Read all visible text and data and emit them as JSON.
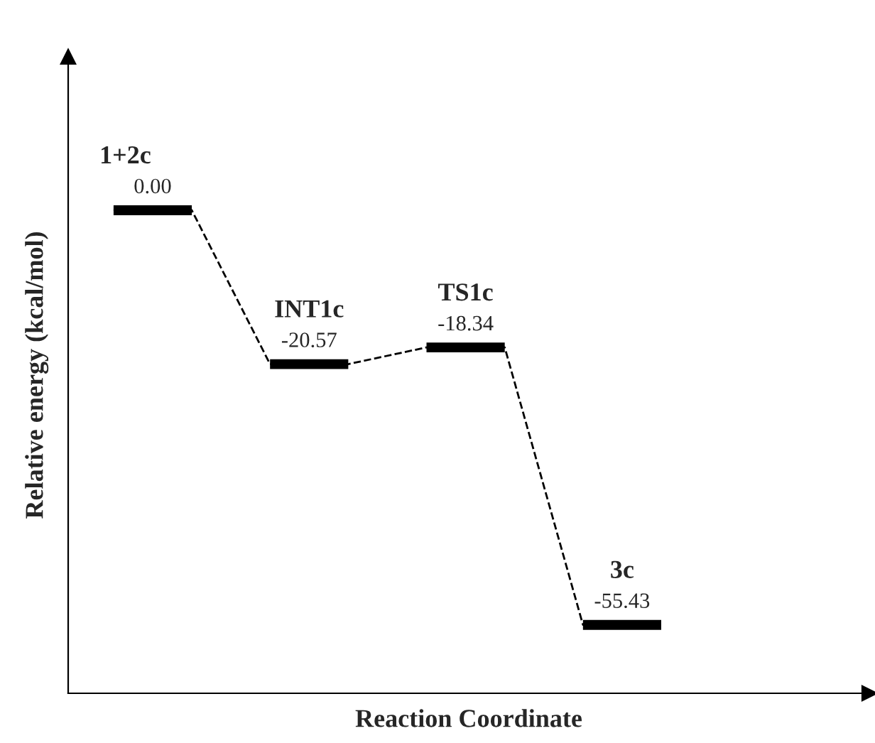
{
  "chart_data": {
    "type": "line",
    "xlabel": "Reaction Coordinate",
    "ylabel": "Relative energy (kcal/mol)",
    "categories": [
      null,
      null,
      null,
      null,
      null,
      null,
      null,
      null
    ],
    "annotations": [
      {
        "text": "1+2c",
        "y": 0.0
      },
      {
        "text": "INT1c",
        "y": -20.57
      },
      {
        "text": "TS1c",
        "y": -18.34
      },
      {
        "text": "3c",
        "y": -55.43
      }
    ],
    "series": [
      {
        "color": "#000000",
        "values": [
          0.0,
          0.0,
          -20.57,
          -20.57,
          -18.34,
          -18.34,
          -55.43,
          -55.43
        ],
        "value_labels": [
          "0.00",
          null,
          "-20.57",
          null,
          "-18.34",
          null,
          "-55.43",
          null
        ]
      }
    ],
    "line_style": "dashed",
    "legend": false,
    "tick_labels": false
  }
}
